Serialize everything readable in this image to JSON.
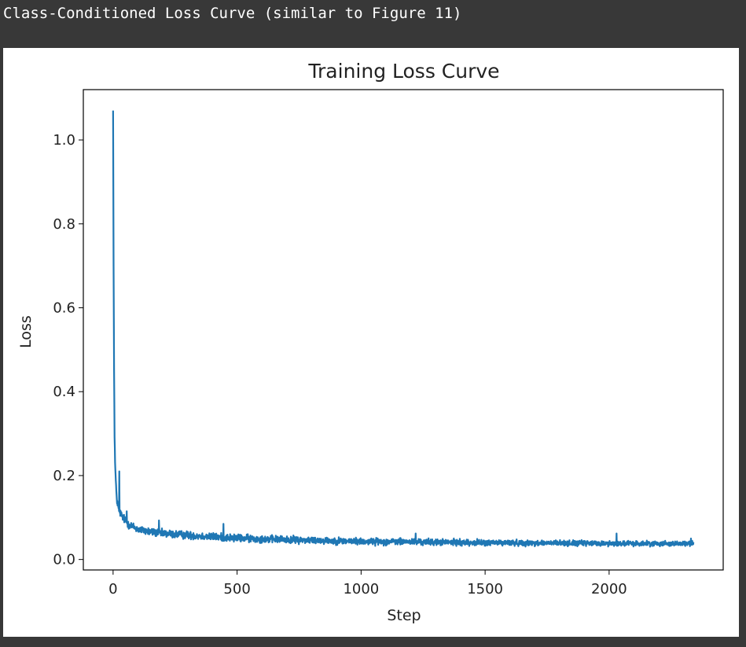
{
  "cell_output": {
    "text": "Class-Conditioned Loss Curve (similar to Figure 11)"
  },
  "chart_data": {
    "type": "line",
    "title": "Training Loss Curve",
    "xlabel": "Step",
    "ylabel": "Loss",
    "xlim": [
      -120,
      2460
    ],
    "ylim": [
      -0.025,
      1.12
    ],
    "xticks": [
      0,
      500,
      1000,
      1500,
      2000
    ],
    "xtick_labels": [
      "0",
      "500",
      "1000",
      "1500",
      "2000"
    ],
    "yticks": [
      0.0,
      0.2,
      0.4,
      0.6,
      0.8,
      1.0
    ],
    "ytick_labels": [
      "0.0",
      "0.2",
      "0.4",
      "0.6",
      "0.8",
      "1.0"
    ],
    "grid": false,
    "series": [
      {
        "color": "#1f77b4",
        "anchors_x": [
          0,
          2,
          4,
          6,
          8,
          12,
          16,
          20,
          30,
          40,
          60,
          80,
          100,
          150,
          200,
          300,
          400,
          500,
          600,
          800,
          1000,
          1200,
          1500,
          1800,
          2000,
          2200,
          2340
        ],
        "anchors_y": [
          1.07,
          0.7,
          0.45,
          0.3,
          0.23,
          0.17,
          0.14,
          0.125,
          0.11,
          0.1,
          0.085,
          0.078,
          0.072,
          0.066,
          0.062,
          0.058,
          0.054,
          0.051,
          0.049,
          0.046,
          0.043,
          0.042,
          0.04,
          0.039,
          0.038,
          0.038,
          0.038
        ],
        "noise_amplitude_start": 0.012,
        "noise_amplitude_end": 0.007,
        "spikes": [
          [
            25,
            0.21
          ],
          [
            55,
            0.115
          ],
          [
            185,
            0.093
          ],
          [
            445,
            0.085
          ],
          [
            1220,
            0.062
          ],
          [
            2030,
            0.062
          ],
          [
            2330,
            0.05
          ]
        ]
      }
    ]
  }
}
